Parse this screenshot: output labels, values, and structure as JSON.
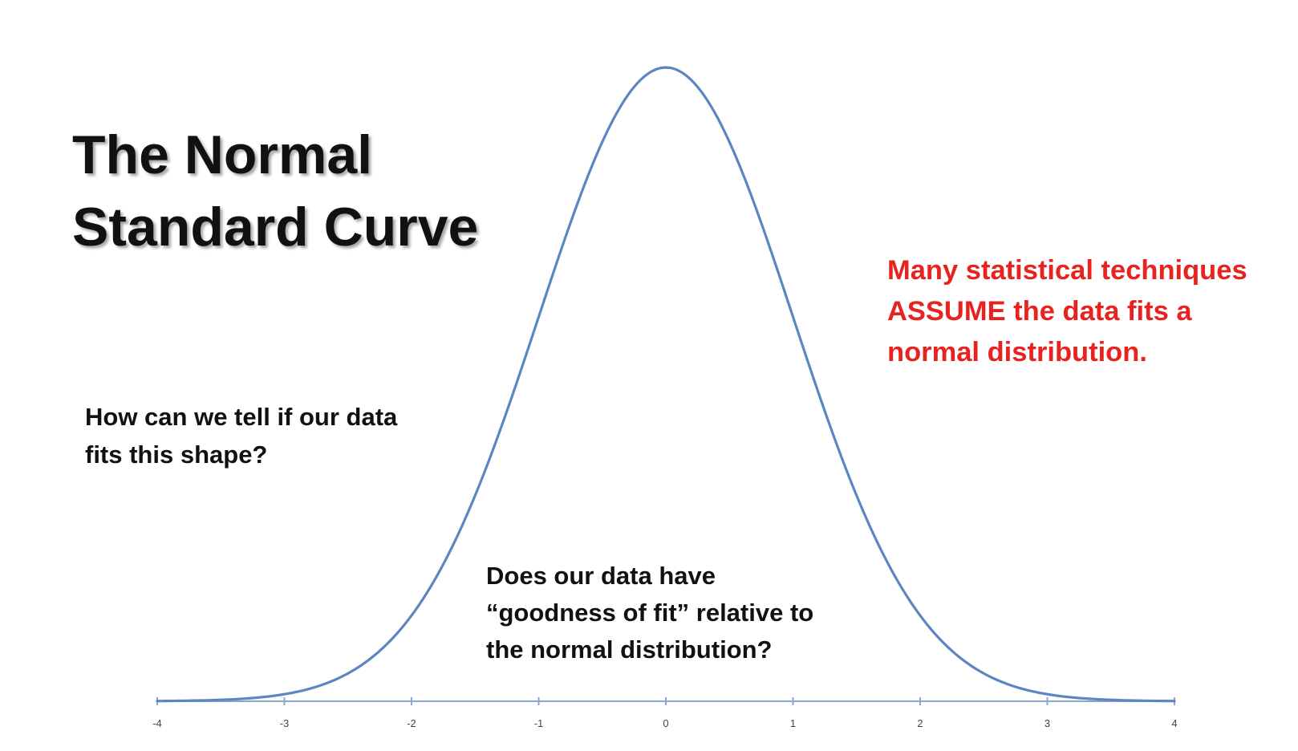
{
  "slide": {
    "title_lines": [
      "The Normal",
      "Standard Curve"
    ],
    "red_note_lines": [
      "Many statistical techniques",
      "ASSUME the data fits a",
      "normal distribution."
    ],
    "left_note_lines": [
      "How can we tell if our data",
      "fits this shape?"
    ],
    "center_note_lines": [
      "Does our data have",
      "“goodness of fit” relative to",
      "the normal distribution?"
    ]
  },
  "colors": {
    "curve": "#5b86c2",
    "axis": "#8aa6cf",
    "red_text": "#e8231f"
  },
  "chart_data": {
    "type": "line",
    "xlim": [
      -4,
      4
    ],
    "ylim": [
      0,
      0.4
    ],
    "x_ticks": [
      -4,
      -3,
      -2,
      -1,
      0,
      1,
      2,
      3,
      4
    ],
    "tick_labels": [
      "-4",
      "-3",
      "-2",
      "-1",
      "0",
      "1",
      "2",
      "3",
      "4"
    ],
    "grid": false,
    "legend": "none",
    "series": [
      {
        "x": [
          -4,
          -3.5,
          -3,
          -2.5,
          -2,
          -1.5,
          -1,
          -0.5,
          0,
          0.5,
          1,
          1.5,
          2,
          2.5,
          3,
          3.5,
          4
        ],
        "y": [
          0.0001,
          0.0009,
          0.0044,
          0.0175,
          0.054,
          0.1295,
          0.242,
          0.3521,
          0.3989,
          0.3521,
          0.242,
          0.1295,
          0.054,
          0.0175,
          0.0044,
          0.0009,
          0.0001
        ]
      }
    ]
  }
}
